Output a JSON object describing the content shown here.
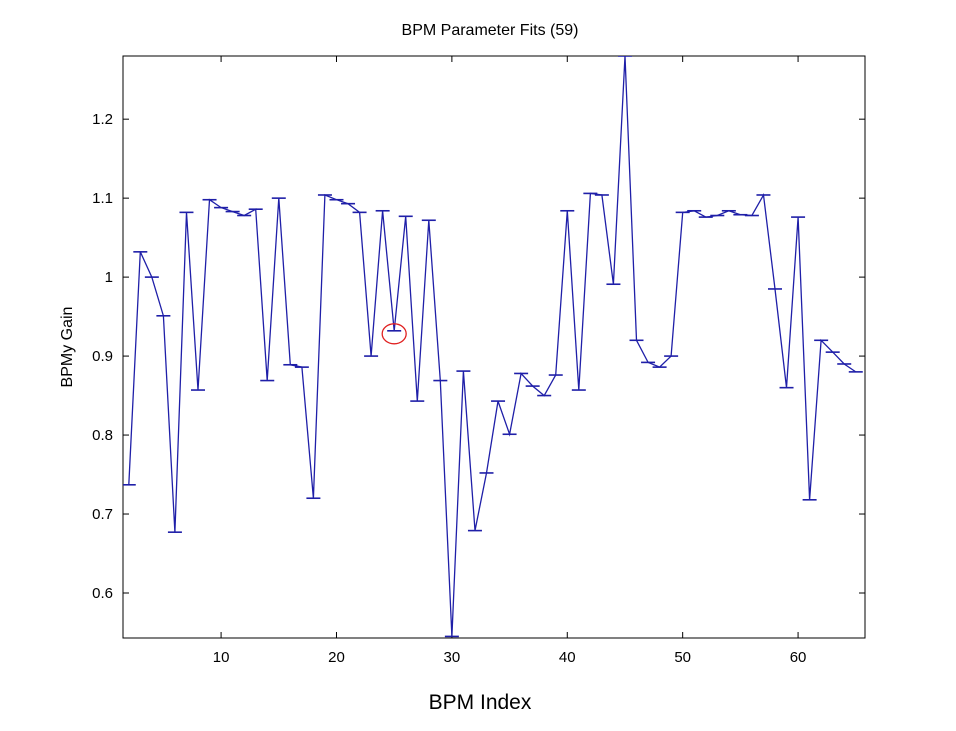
{
  "chart_data": {
    "type": "line",
    "title": "BPM Parameter Fits (59)",
    "xlabel": "BPM Index",
    "ylabel": "BPMy Gain",
    "xlim": [
      1.5,
      65.8
    ],
    "ylim": [
      0.543,
      1.28
    ],
    "xticks": [
      10,
      20,
      30,
      40,
      50,
      60
    ],
    "yticks": [
      0.6,
      0.7,
      0.8,
      0.9,
      1.0,
      1.1,
      1.2
    ],
    "ytick_labels": [
      "0.6",
      "0.7",
      "0.8",
      "0.9",
      "1",
      "1.1",
      "1.2"
    ],
    "grid": false,
    "line_color": "#1f1fa8",
    "highlight_color": "#e02020",
    "highlight_index": 25,
    "series": [
      {
        "x": [
          2,
          3,
          4,
          5,
          6,
          7,
          8,
          9,
          10,
          11,
          12,
          13,
          14,
          15,
          16,
          17,
          18,
          19,
          20,
          21,
          22,
          23,
          24,
          25,
          26,
          27,
          28,
          29,
          30,
          31,
          32,
          33,
          34,
          35,
          36,
          37,
          38,
          39,
          40,
          41,
          42,
          43,
          44,
          45,
          46,
          47,
          48,
          49,
          50,
          51,
          52,
          53,
          54,
          55,
          56,
          57,
          58,
          59,
          60,
          61,
          62,
          63,
          64,
          65
        ],
        "y": [
          0.737,
          1.032,
          1.0,
          0.951,
          0.677,
          1.082,
          0.857,
          1.098,
          1.088,
          1.083,
          1.078,
          1.086,
          0.869,
          1.1,
          0.889,
          0.886,
          0.72,
          1.104,
          1.098,
          1.093,
          1.082,
          0.9,
          1.084,
          0.932,
          1.077,
          0.843,
          1.072,
          0.869,
          0.545,
          0.881,
          0.679,
          0.752,
          0.843,
          0.801,
          0.878,
          0.862,
          0.85,
          0.876,
          1.084,
          0.857,
          1.106,
          1.104,
          0.991,
          1.28,
          0.92,
          0.892,
          0.886,
          0.9,
          1.082,
          1.084,
          1.076,
          1.078,
          1.084,
          1.079,
          1.078,
          1.104,
          0.985,
          0.86,
          1.076,
          0.718,
          0.92,
          0.905,
          0.89,
          0.88
        ]
      }
    ]
  }
}
